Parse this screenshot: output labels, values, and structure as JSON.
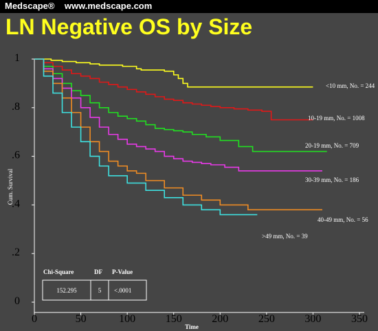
{
  "header": {
    "brand": "Medscape®",
    "url": "www.medscape.com"
  },
  "title": "LN Negative OS by Size",
  "chart_data": {
    "type": "line",
    "title": "LN Negative OS by Size",
    "xlabel": "Time",
    "ylabel": "Cum. Survival",
    "xlim": [
      0,
      350
    ],
    "ylim": [
      0,
      1
    ],
    "x_ticks": [
      "0",
      "50",
      "100",
      "150",
      "200",
      "250",
      "300",
      "350"
    ],
    "y_ticks": [
      "0",
      ".2",
      ".4",
      ".6",
      ".8",
      "1"
    ],
    "grid": false,
    "series": [
      {
        "name": "<10 mm, No. = 244",
        "color": "#ffff1e",
        "x": [
          0,
          18,
          30,
          45,
          60,
          70,
          95,
          110,
          115,
          140,
          150,
          155,
          160,
          165,
          200,
          250,
          300
        ],
        "y": [
          1,
          0.995,
          0.99,
          0.985,
          0.98,
          0.975,
          0.97,
          0.96,
          0.955,
          0.95,
          0.935,
          0.92,
          0.9,
          0.885,
          0.885,
          0.885,
          0.885
        ]
      },
      {
        "name": "10-19 mm, No. = 1008",
        "color": "#e01818",
        "x": [
          0,
          10,
          20,
          30,
          40,
          50,
          60,
          70,
          80,
          90,
          100,
          110,
          120,
          130,
          140,
          150,
          160,
          170,
          180,
          190,
          200,
          215,
          230,
          245,
          255,
          300
        ],
        "y": [
          1,
          0.985,
          0.97,
          0.955,
          0.94,
          0.93,
          0.92,
          0.905,
          0.895,
          0.885,
          0.875,
          0.865,
          0.855,
          0.845,
          0.835,
          0.83,
          0.82,
          0.815,
          0.81,
          0.805,
          0.8,
          0.795,
          0.79,
          0.785,
          0.75,
          0.75
        ]
      },
      {
        "name": "20-19 mm, No. = 709",
        "color": "#21e021",
        "x": [
          0,
          10,
          20,
          30,
          40,
          50,
          60,
          70,
          80,
          90,
          100,
          110,
          120,
          130,
          140,
          150,
          160,
          170,
          185,
          200,
          220,
          235,
          315
        ],
        "y": [
          1,
          0.97,
          0.94,
          0.9,
          0.87,
          0.85,
          0.82,
          0.8,
          0.78,
          0.765,
          0.755,
          0.745,
          0.73,
          0.715,
          0.71,
          0.705,
          0.7,
          0.69,
          0.68,
          0.665,
          0.64,
          0.62,
          0.62
        ]
      },
      {
        "name": "30-39 mm, No. = 186",
        "color": "#e83ae8",
        "x": [
          0,
          10,
          20,
          30,
          40,
          50,
          60,
          70,
          80,
          90,
          100,
          110,
          120,
          130,
          140,
          150,
          160,
          170,
          180,
          190,
          205,
          220,
          310
        ],
        "y": [
          1,
          0.96,
          0.92,
          0.88,
          0.84,
          0.8,
          0.76,
          0.72,
          0.69,
          0.67,
          0.65,
          0.64,
          0.63,
          0.62,
          0.6,
          0.59,
          0.58,
          0.575,
          0.57,
          0.565,
          0.555,
          0.54,
          0.54
        ]
      },
      {
        "name": "40-49 mm, No. = 56",
        "color": "#f08c24",
        "x": [
          0,
          10,
          20,
          30,
          40,
          50,
          60,
          70,
          80,
          90,
          100,
          110,
          120,
          140,
          160,
          180,
          200,
          230,
          310
        ],
        "y": [
          1,
          0.95,
          0.9,
          0.84,
          0.78,
          0.72,
          0.66,
          0.62,
          0.58,
          0.56,
          0.54,
          0.53,
          0.5,
          0.47,
          0.44,
          0.42,
          0.4,
          0.38,
          0.38
        ]
      },
      {
        "name": ">49 mm, No. = 39",
        "color": "#3ee0e0",
        "x": [
          0,
          10,
          20,
          30,
          40,
          50,
          60,
          70,
          80,
          100,
          120,
          140,
          160,
          180,
          200,
          240
        ],
        "y": [
          1,
          0.93,
          0.86,
          0.78,
          0.72,
          0.66,
          0.6,
          0.56,
          0.52,
          0.49,
          0.46,
          0.43,
          0.4,
          0.38,
          0.36,
          0.36
        ]
      }
    ],
    "table": {
      "headers": [
        "Chi-Square",
        "DF",
        "P-Value"
      ],
      "values": [
        "152.295",
        "5",
        "<.0001"
      ]
    },
    "axis_color": "#ffffff"
  }
}
